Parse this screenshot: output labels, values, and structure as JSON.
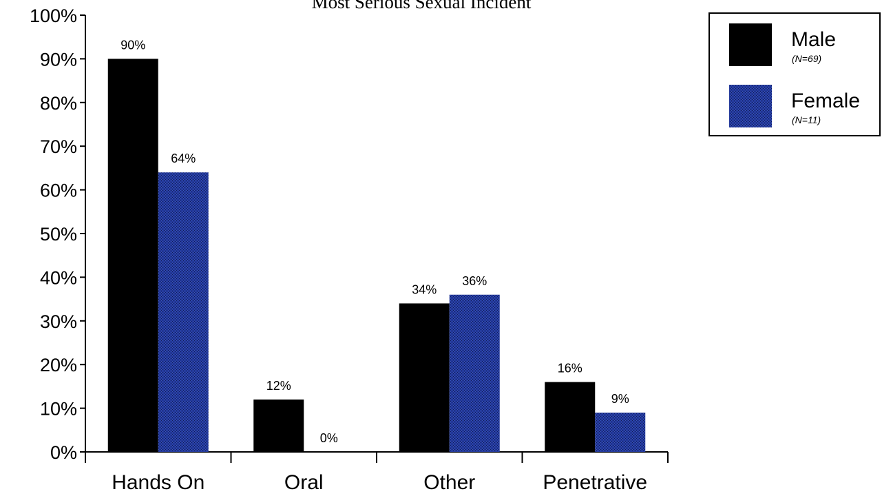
{
  "chart_data": {
    "type": "bar",
    "title": "Most Serious Sexual Incident",
    "categories": [
      "Hands On",
      "Oral",
      "Other",
      "Penetrative"
    ],
    "series": [
      {
        "name": "Male",
        "note": "(N=69)",
        "color": "#000000",
        "values": [
          90,
          12,
          34,
          16
        ],
        "labels": [
          "90%",
          "12%",
          "34%",
          "16%"
        ]
      },
      {
        "name": "Female",
        "note": "(N=11)",
        "color": "#23399a",
        "values": [
          64,
          0,
          36,
          9
        ],
        "labels": [
          "64%",
          "0%",
          "36%",
          "9%"
        ]
      }
    ],
    "ylim": [
      0,
      100
    ],
    "yticks": [
      0,
      10,
      20,
      30,
      40,
      50,
      60,
      70,
      80,
      90,
      100
    ],
    "ytick_labels": [
      "0%",
      "10%",
      "20%",
      "30%",
      "40%",
      "50%",
      "60%",
      "70%",
      "80%",
      "90%",
      "100%"
    ],
    "xlabel": "",
    "ylabel": "",
    "grid": false,
    "legend_position": "top-right"
  }
}
